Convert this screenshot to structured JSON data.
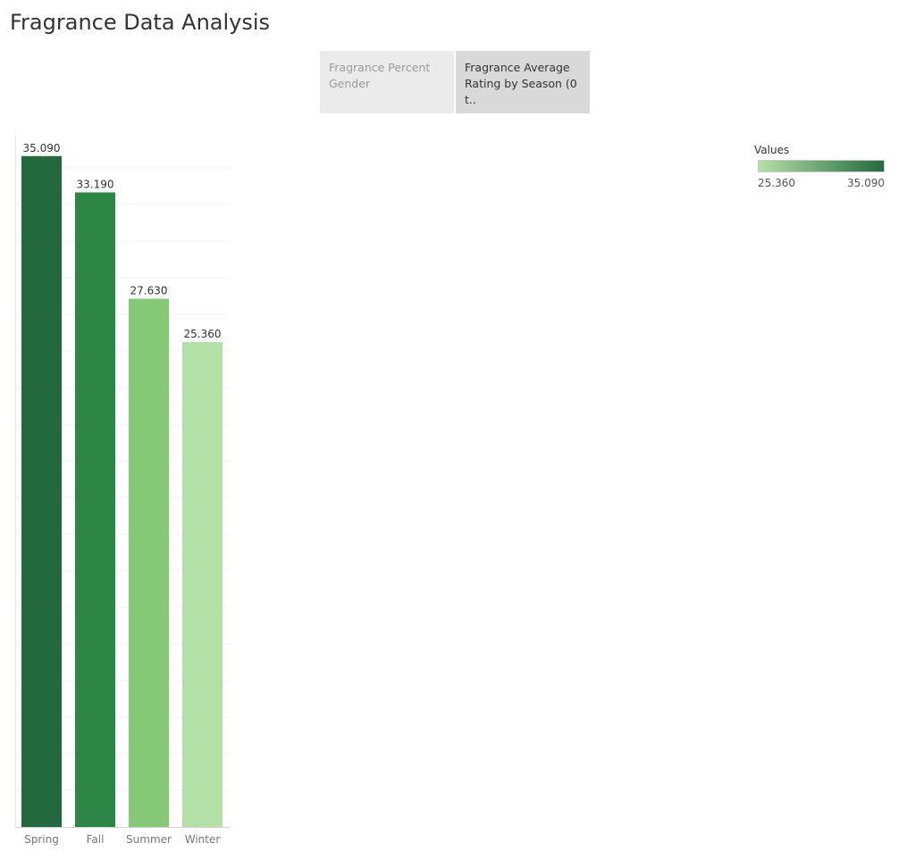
{
  "page": {
    "title": "Fragrance Data Analysis"
  },
  "tabs": [
    {
      "label": "Fragrance Percent Gender",
      "active": false
    },
    {
      "label": "Fragrance Average Rating by Season (0 t..",
      "active": true
    }
  ],
  "legend": {
    "title": "Values",
    "min_label": "25.360",
    "max_label": "35.090",
    "color_low": "#b3e0a6",
    "color_high": "#24693d"
  },
  "chart_data": {
    "type": "bar",
    "title": "",
    "xlabel": "",
    "ylabel": "",
    "categories": [
      "Spring",
      "Fall",
      "Summer",
      "Winter"
    ],
    "values": [
      35.09,
      33.19,
      27.63,
      25.36
    ],
    "value_labels": [
      "35.090",
      "33.190",
      "27.630",
      "25.360"
    ],
    "colors": [
      "#24693d",
      "#2e8646",
      "#85c976",
      "#b3e0a6"
    ],
    "ylim": [
      0,
      36.2
    ],
    "grid": true,
    "legend_position": "top-right"
  }
}
